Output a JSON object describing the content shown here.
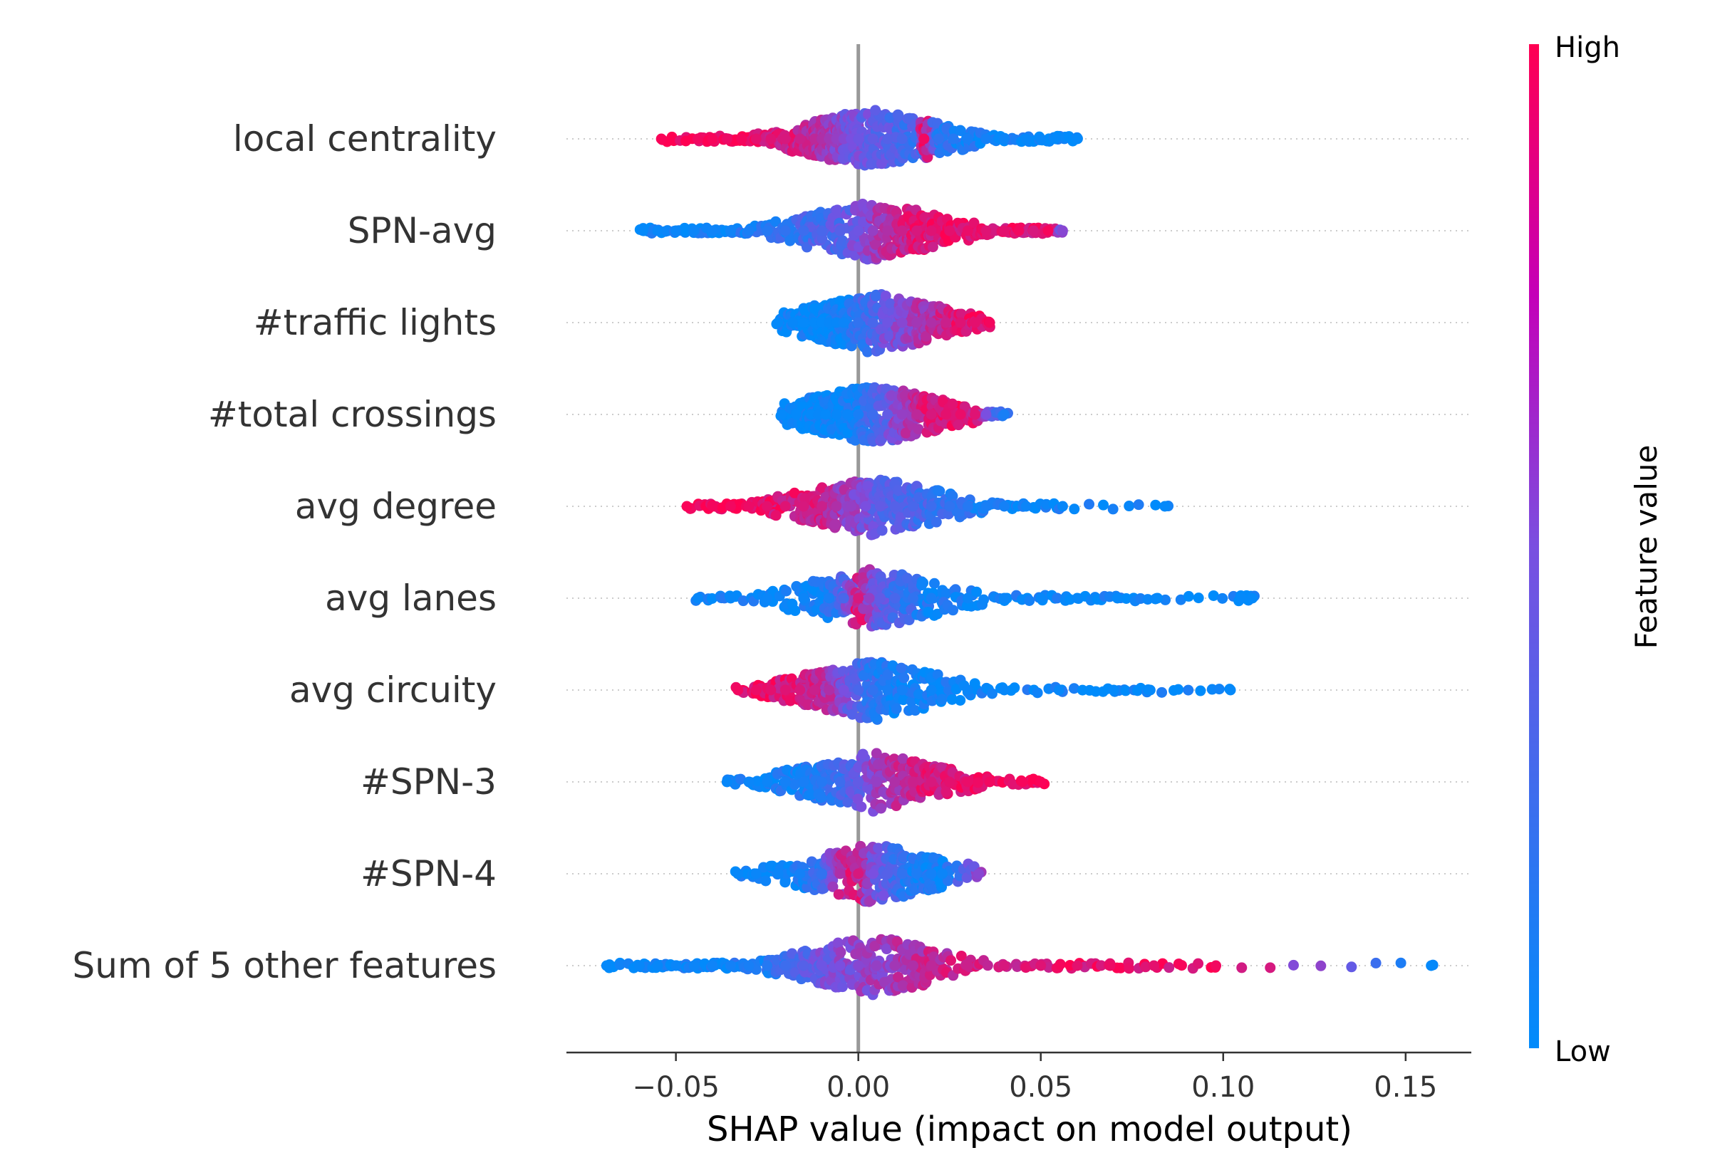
{
  "chart_data": {
    "type": "scatter",
    "subtype": "shap-beeswarm",
    "xlabel": "SHAP value (impact on model output)",
    "xlim": [
      -0.08,
      0.168
    ],
    "xticks": [
      -0.05,
      0.0,
      0.05,
      0.1,
      0.15
    ],
    "xtick_labels": [
      "−0.05",
      "0.00",
      "0.05",
      "0.10",
      "0.15"
    ],
    "zero_line": 0.0,
    "colorbar": {
      "title": "Feature value",
      "high_label": "High",
      "low_label": "Low",
      "low_color": "#008bfb",
      "mid_color": "#b000c6",
      "high_color": "#ff0052"
    },
    "point_size_note": "dots colored by normalized feature value (0=Low, 1=High)",
    "features": [
      {
        "name": "local centrality",
        "dense_range": [
          -0.03,
          0.04
        ],
        "points": [
          {
            "x": -0.054,
            "v": 0.98
          },
          {
            "x": -0.044,
            "v": 0.95
          },
          {
            "x": -0.04,
            "v": 0.97
          },
          {
            "x": -0.036,
            "v": 0.93
          },
          {
            "x": -0.032,
            "v": 0.96
          },
          {
            "x": -0.028,
            "v": 0.9
          },
          {
            "x": -0.024,
            "v": 0.88
          },
          {
            "x": -0.02,
            "v": 0.85
          },
          {
            "x": -0.016,
            "v": 0.8
          },
          {
            "x": -0.012,
            "v": 0.75
          },
          {
            "x": -0.01,
            "v": 0.7
          },
          {
            "x": -0.008,
            "v": 0.65
          },
          {
            "x": -0.006,
            "v": 0.6
          },
          {
            "x": -0.004,
            "v": 0.55
          },
          {
            "x": -0.002,
            "v": 0.5
          },
          {
            "x": 0.0,
            "v": 0.45
          },
          {
            "x": 0.004,
            "v": 0.4
          },
          {
            "x": 0.008,
            "v": 0.35
          },
          {
            "x": 0.012,
            "v": 0.3
          },
          {
            "x": 0.018,
            "v": 0.25
          },
          {
            "x": 0.018,
            "v": 0.95
          },
          {
            "x": 0.022,
            "v": 0.2
          },
          {
            "x": 0.026,
            "v": 0.15
          },
          {
            "x": 0.03,
            "v": 0.1
          },
          {
            "x": 0.035,
            "v": 0.08
          },
          {
            "x": 0.04,
            "v": 0.05
          },
          {
            "x": 0.046,
            "v": 0.03
          },
          {
            "x": 0.05,
            "v": 0.03
          },
          {
            "x": 0.054,
            "v": 0.02
          },
          {
            "x": 0.06,
            "v": 0.02
          }
        ]
      },
      {
        "name": "SPN-avg",
        "dense_range": [
          -0.055,
          0.036
        ],
        "points": [
          {
            "x": -0.059,
            "v": 0.02
          },
          {
            "x": -0.055,
            "v": 0.03
          },
          {
            "x": -0.05,
            "v": 0.04
          },
          {
            "x": -0.045,
            "v": 0.05
          },
          {
            "x": -0.04,
            "v": 0.06
          },
          {
            "x": -0.035,
            "v": 0.07
          },
          {
            "x": -0.03,
            "v": 0.1
          },
          {
            "x": -0.025,
            "v": 0.15
          },
          {
            "x": -0.02,
            "v": 0.2
          },
          {
            "x": -0.015,
            "v": 0.25
          },
          {
            "x": -0.01,
            "v": 0.3
          },
          {
            "x": -0.005,
            "v": 0.35
          },
          {
            "x": 0.0,
            "v": 0.45
          },
          {
            "x": 0.004,
            "v": 0.6
          },
          {
            "x": 0.008,
            "v": 0.7
          },
          {
            "x": 0.012,
            "v": 0.8
          },
          {
            "x": 0.016,
            "v": 0.85
          },
          {
            "x": 0.02,
            "v": 0.88
          },
          {
            "x": 0.025,
            "v": 0.9
          },
          {
            "x": 0.03,
            "v": 0.92
          },
          {
            "x": 0.035,
            "v": 0.88
          },
          {
            "x": 0.04,
            "v": 0.9
          },
          {
            "x": 0.044,
            "v": 0.95
          },
          {
            "x": 0.048,
            "v": 0.85
          },
          {
            "x": 0.052,
            "v": 0.97
          },
          {
            "x": 0.056,
            "v": 0.55
          }
        ]
      },
      {
        "name": "#traffic lights",
        "dense_range": [
          -0.02,
          0.034
        ],
        "points": [
          {
            "x": -0.022,
            "v": 0.02
          },
          {
            "x": -0.018,
            "v": 0.03
          },
          {
            "x": -0.015,
            "v": 0.02
          },
          {
            "x": -0.012,
            "v": 0.02
          },
          {
            "x": -0.01,
            "v": 0.02
          },
          {
            "x": -0.008,
            "v": 0.03
          },
          {
            "x": -0.006,
            "v": 0.03
          },
          {
            "x": -0.004,
            "v": 0.05
          },
          {
            "x": 0.0,
            "v": 0.2
          },
          {
            "x": 0.004,
            "v": 0.3
          },
          {
            "x": 0.008,
            "v": 0.45
          },
          {
            "x": 0.012,
            "v": 0.55
          },
          {
            "x": 0.016,
            "v": 0.65
          },
          {
            "x": 0.02,
            "v": 0.7
          },
          {
            "x": 0.024,
            "v": 0.8
          },
          {
            "x": 0.028,
            "v": 0.88
          },
          {
            "x": 0.032,
            "v": 0.9
          },
          {
            "x": 0.036,
            "v": 0.96
          }
        ]
      },
      {
        "name": "#total crossings",
        "dense_range": [
          -0.021,
          0.036
        ],
        "points": [
          {
            "x": -0.021,
            "v": 0.02
          },
          {
            "x": -0.017,
            "v": 0.02
          },
          {
            "x": -0.013,
            "v": 0.02
          },
          {
            "x": -0.011,
            "v": 0.03
          },
          {
            "x": -0.009,
            "v": 0.02
          },
          {
            "x": -0.006,
            "v": 0.03
          },
          {
            "x": -0.003,
            "v": 0.04
          },
          {
            "x": 0.0,
            "v": 0.1
          },
          {
            "x": 0.004,
            "v": 0.25
          },
          {
            "x": 0.008,
            "v": 0.4
          },
          {
            "x": 0.012,
            "v": 0.6
          },
          {
            "x": 0.016,
            "v": 0.75
          },
          {
            "x": 0.02,
            "v": 0.85
          },
          {
            "x": 0.024,
            "v": 0.9
          },
          {
            "x": 0.028,
            "v": 0.92
          },
          {
            "x": 0.032,
            "v": 0.88
          },
          {
            "x": 0.035,
            "v": 0.5
          },
          {
            "x": 0.04,
            "v": 0.1
          }
        ]
      },
      {
        "name": "avg degree",
        "dense_range": [
          -0.045,
          0.047
        ],
        "points": [
          {
            "x": -0.047,
            "v": 0.98
          },
          {
            "x": -0.04,
            "v": 0.96
          },
          {
            "x": -0.035,
            "v": 0.95
          },
          {
            "x": -0.03,
            "v": 0.93
          },
          {
            "x": -0.025,
            "v": 0.9
          },
          {
            "x": -0.02,
            "v": 0.88
          },
          {
            "x": -0.015,
            "v": 0.85
          },
          {
            "x": -0.01,
            "v": 0.8
          },
          {
            "x": -0.006,
            "v": 0.7
          },
          {
            "x": -0.002,
            "v": 0.6
          },
          {
            "x": 0.002,
            "v": 0.5
          },
          {
            "x": 0.006,
            "v": 0.4
          },
          {
            "x": 0.01,
            "v": 0.35
          },
          {
            "x": 0.015,
            "v": 0.3
          },
          {
            "x": 0.02,
            "v": 0.25
          },
          {
            "x": 0.025,
            "v": 0.2
          },
          {
            "x": 0.03,
            "v": 0.15
          },
          {
            "x": 0.035,
            "v": 0.1
          },
          {
            "x": 0.04,
            "v": 0.08
          },
          {
            "x": 0.046,
            "v": 0.05
          },
          {
            "x": 0.056,
            "v": 0.03
          },
          {
            "x": 0.084,
            "v": 0.02
          }
        ]
      },
      {
        "name": "avg lanes",
        "dense_range": [
          -0.044,
          0.06
        ],
        "points": [
          {
            "x": -0.044,
            "v": 0.03
          },
          {
            "x": -0.035,
            "v": 0.03
          },
          {
            "x": -0.025,
            "v": 0.04
          },
          {
            "x": -0.015,
            "v": 0.05
          },
          {
            "x": -0.008,
            "v": 0.1
          },
          {
            "x": -0.004,
            "v": 0.3
          },
          {
            "x": 0.0,
            "v": 0.85
          },
          {
            "x": 0.003,
            "v": 0.6
          },
          {
            "x": 0.006,
            "v": 0.4
          },
          {
            "x": 0.01,
            "v": 0.3
          },
          {
            "x": 0.015,
            "v": 0.2
          },
          {
            "x": 0.02,
            "v": 0.1
          },
          {
            "x": 0.03,
            "v": 0.05
          },
          {
            "x": 0.04,
            "v": 0.04
          },
          {
            "x": 0.05,
            "v": 0.03
          },
          {
            "x": 0.06,
            "v": 0.03
          },
          {
            "x": 0.071,
            "v": 0.02
          },
          {
            "x": 0.082,
            "v": 0.02
          },
          {
            "x": 0.105,
            "v": 0.02
          },
          {
            "x": 0.108,
            "v": 0.02
          }
        ]
      },
      {
        "name": "avg circuity",
        "dense_range": [
          -0.033,
          0.042
        ],
        "points": [
          {
            "x": -0.033,
            "v": 0.95
          },
          {
            "x": -0.028,
            "v": 0.93
          },
          {
            "x": -0.024,
            "v": 0.9
          },
          {
            "x": -0.02,
            "v": 0.88
          },
          {
            "x": -0.016,
            "v": 0.85
          },
          {
            "x": -0.012,
            "v": 0.8
          },
          {
            "x": -0.008,
            "v": 0.7
          },
          {
            "x": -0.004,
            "v": 0.5
          },
          {
            "x": 0.0,
            "v": 0.3
          },
          {
            "x": 0.004,
            "v": 0.2
          },
          {
            "x": 0.008,
            "v": 0.1
          },
          {
            "x": 0.012,
            "v": 0.08
          },
          {
            "x": 0.02,
            "v": 0.05
          },
          {
            "x": 0.03,
            "v": 0.04
          },
          {
            "x": 0.04,
            "v": 0.03
          },
          {
            "x": 0.055,
            "v": 0.03
          },
          {
            "x": 0.07,
            "v": 0.02
          },
          {
            "x": 0.08,
            "v": 0.02
          },
          {
            "x": 0.102,
            "v": 0.02
          }
        ]
      },
      {
        "name": "#SPN-3",
        "dense_range": [
          -0.036,
          0.05
        ],
        "points": [
          {
            "x": -0.036,
            "v": 0.03
          },
          {
            "x": -0.03,
            "v": 0.04
          },
          {
            "x": -0.025,
            "v": 0.05
          },
          {
            "x": -0.02,
            "v": 0.08
          },
          {
            "x": -0.015,
            "v": 0.1
          },
          {
            "x": -0.01,
            "v": 0.15
          },
          {
            "x": -0.005,
            "v": 0.25
          },
          {
            "x": 0.0,
            "v": 0.4
          },
          {
            "x": 0.005,
            "v": 0.6
          },
          {
            "x": 0.01,
            "v": 0.7
          },
          {
            "x": 0.015,
            "v": 0.8
          },
          {
            "x": 0.02,
            "v": 0.85
          },
          {
            "x": 0.025,
            "v": 0.9
          },
          {
            "x": 0.03,
            "v": 0.92
          },
          {
            "x": 0.036,
            "v": 0.95
          },
          {
            "x": 0.045,
            "v": 0.97
          },
          {
            "x": 0.05,
            "v": 0.98
          }
        ]
      },
      {
        "name": "#SPN-4",
        "dense_range": [
          -0.033,
          0.033
        ],
        "points": [
          {
            "x": -0.033,
            "v": 0.03
          },
          {
            "x": -0.028,
            "v": 0.04
          },
          {
            "x": -0.022,
            "v": 0.05
          },
          {
            "x": -0.016,
            "v": 0.08
          },
          {
            "x": -0.01,
            "v": 0.2
          },
          {
            "x": -0.005,
            "v": 0.7
          },
          {
            "x": 0.0,
            "v": 0.85
          },
          {
            "x": 0.004,
            "v": 0.5
          },
          {
            "x": 0.008,
            "v": 0.35
          },
          {
            "x": 0.012,
            "v": 0.2
          },
          {
            "x": 0.016,
            "v": 0.12
          },
          {
            "x": 0.02,
            "v": 0.08
          },
          {
            "x": 0.023,
            "v": 0.05
          },
          {
            "x": 0.033,
            "v": 0.55
          }
        ]
      },
      {
        "name": "Sum of 5 other features",
        "dense_range": [
          -0.069,
          0.157
        ],
        "points": [
          {
            "x": -0.069,
            "v": 0.02
          },
          {
            "x": -0.06,
            "v": 0.03
          },
          {
            "x": -0.055,
            "v": 0.03
          },
          {
            "x": -0.05,
            "v": 0.04
          },
          {
            "x": -0.045,
            "v": 0.05
          },
          {
            "x": -0.04,
            "v": 0.06
          },
          {
            "x": -0.035,
            "v": 0.08
          },
          {
            "x": -0.03,
            "v": 0.1
          },
          {
            "x": -0.025,
            "v": 0.15
          },
          {
            "x": -0.02,
            "v": 0.25
          },
          {
            "x": -0.015,
            "v": 0.35
          },
          {
            "x": -0.01,
            "v": 0.45
          },
          {
            "x": -0.005,
            "v": 0.5
          },
          {
            "x": 0.0,
            "v": 0.55
          },
          {
            "x": 0.005,
            "v": 0.6
          },
          {
            "x": 0.01,
            "v": 0.65
          },
          {
            "x": 0.015,
            "v": 0.7
          },
          {
            "x": 0.02,
            "v": 0.75
          },
          {
            "x": 0.03,
            "v": 0.8
          },
          {
            "x": 0.04,
            "v": 0.85
          },
          {
            "x": 0.05,
            "v": 0.88
          },
          {
            "x": 0.06,
            "v": 0.9
          },
          {
            "x": 0.069,
            "v": 0.93
          },
          {
            "x": 0.081,
            "v": 0.9
          },
          {
            "x": 0.098,
            "v": 0.95
          },
          {
            "x": 0.157,
            "v": 0.02
          }
        ]
      }
    ]
  }
}
